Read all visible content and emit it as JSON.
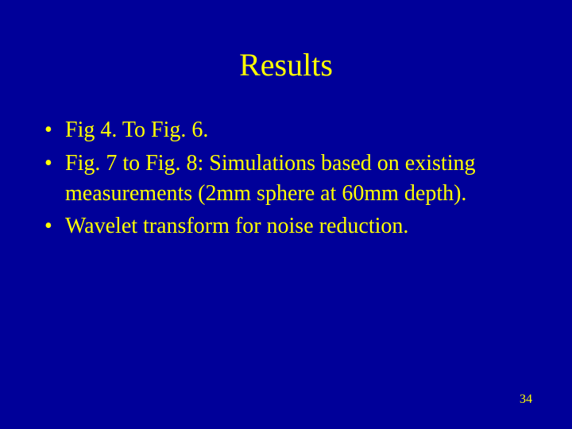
{
  "slide": {
    "title": "Results",
    "bullets": [
      "Fig 4. To Fig. 6.",
      "Fig. 7 to Fig. 8: Simulations based on existing measurements (2mm sphere at 60mm depth).",
      "Wavelet transform for noise reduction."
    ],
    "page_number": "34",
    "background_color": "#000099",
    "text_color": "#ffff00",
    "title_fontsize": 40,
    "body_fontsize": 28,
    "page_number_fontsize": 16,
    "font_family": "Times New Roman"
  }
}
